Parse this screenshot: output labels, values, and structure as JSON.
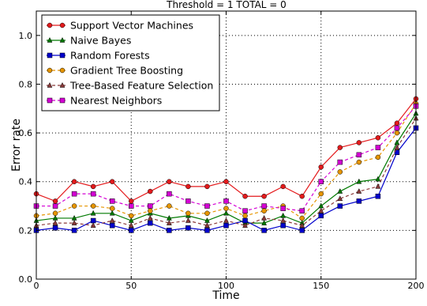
{
  "chart_data": {
    "type": "line",
    "title": "Threshold = 1      TOTAL = 0",
    "xlabel": "Time",
    "ylabel": "Error rate",
    "xlim": [
      0,
      200
    ],
    "ylim": [
      0.0,
      1.1
    ],
    "x_ticks": [
      "0",
      "50",
      "100",
      "150",
      "200"
    ],
    "y_ticks": [
      "0.0",
      "0.2",
      "0.4",
      "0.6",
      "0.8",
      "1.0"
    ],
    "grid": "dotted, at ticks",
    "legend_position": "top-left",
    "x": [
      0,
      10,
      20,
      30,
      40,
      50,
      60,
      70,
      80,
      90,
      100,
      110,
      120,
      130,
      140,
      150,
      160,
      170,
      180,
      190,
      200
    ],
    "series": [
      {
        "name": "Support Vector Machines",
        "color": "#e41a1c",
        "marker": "circle",
        "linestyle": "solid",
        "values": [
          0.35,
          0.32,
          0.4,
          0.38,
          0.4,
          0.32,
          0.36,
          0.4,
          0.38,
          0.38,
          0.4,
          0.34,
          0.34,
          0.38,
          0.34,
          0.46,
          0.54,
          0.56,
          0.58,
          0.64,
          0.74
        ]
      },
      {
        "name": "Naive Bayes",
        "color": "#007a00",
        "marker": "triangle",
        "linestyle": "solid",
        "values": [
          0.24,
          0.25,
          0.25,
          0.27,
          0.27,
          0.24,
          0.27,
          0.25,
          0.26,
          0.24,
          0.27,
          0.23,
          0.23,
          0.26,
          0.23,
          0.3,
          0.36,
          0.4,
          0.41,
          0.56,
          0.68
        ]
      },
      {
        "name": "Random Forests",
        "color": "#0000cc",
        "marker": "square",
        "linestyle": "solid",
        "values": [
          0.2,
          0.21,
          0.2,
          0.24,
          0.22,
          0.2,
          0.23,
          0.2,
          0.21,
          0.2,
          0.22,
          0.24,
          0.2,
          0.22,
          0.2,
          0.26,
          0.3,
          0.32,
          0.34,
          0.52,
          0.62
        ]
      },
      {
        "name": "Gradient Tree Boosting",
        "color": "#e69500",
        "marker": "circle",
        "linestyle": "dashed",
        "values": [
          0.26,
          0.27,
          0.3,
          0.3,
          0.29,
          0.26,
          0.28,
          0.3,
          0.27,
          0.27,
          0.29,
          0.26,
          0.28,
          0.3,
          0.25,
          0.35,
          0.44,
          0.48,
          0.5,
          0.6,
          0.72
        ]
      },
      {
        "name": "Tree-Based Feature Selection",
        "color": "#8b3a3a",
        "marker": "triangle",
        "linestyle": "dashed",
        "values": [
          0.22,
          0.23,
          0.23,
          0.22,
          0.24,
          0.22,
          0.25,
          0.23,
          0.24,
          0.22,
          0.24,
          0.22,
          0.25,
          0.24,
          0.22,
          0.28,
          0.33,
          0.36,
          0.38,
          0.54,
          0.66
        ]
      },
      {
        "name": "Nearest Neighbors",
        "color": "#d400d4",
        "marker": "square",
        "linestyle": "dashed",
        "values": [
          0.3,
          0.3,
          0.35,
          0.35,
          0.32,
          0.3,
          0.3,
          0.35,
          0.32,
          0.3,
          0.32,
          0.28,
          0.3,
          0.29,
          0.28,
          0.4,
          0.48,
          0.51,
          0.54,
          0.62,
          0.71
        ]
      }
    ]
  }
}
